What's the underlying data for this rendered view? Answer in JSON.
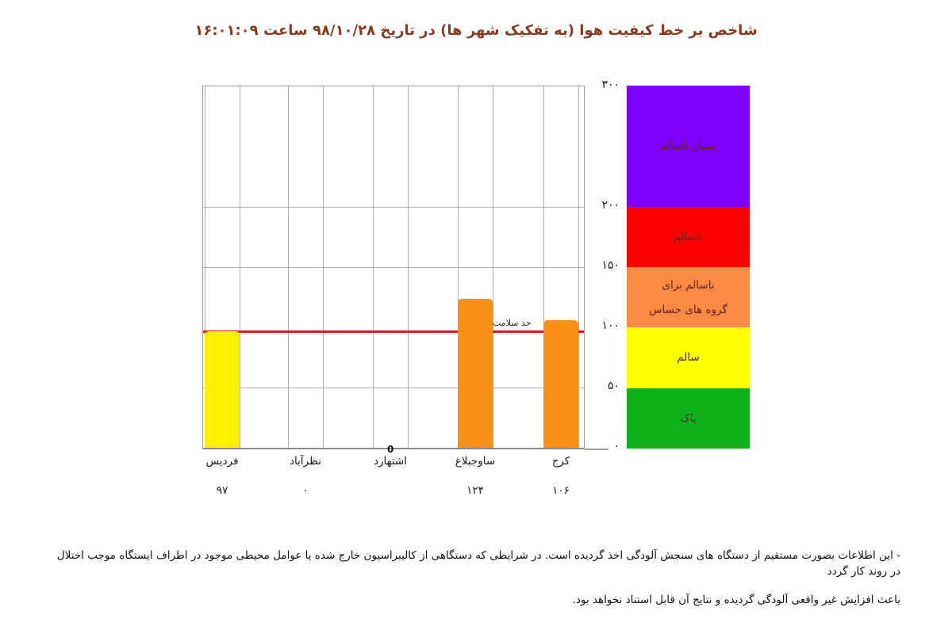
{
  "title": "شاخص بر خط کیفیت هوا (به تفکیک شهر ها) در تاریخ ۹۸/۱۰/۲۸   ساعت ۱۶:۰۱:۰۹",
  "footnote": {
    "line1": "- این اطلاعات بصورت مستقیم از دستگاه های سنجش آلودگی اخذ گردیده است. در شرایطی که دستگاهی از کالیبراسیون خارج شده یا عوامل محیطی موجود در اطراف ایستگاه موجب اختلال در روند کار گردد",
    "line2": "باعث افزایش غیر واقعی آلودگی گردیده و نتایج آن قابل استناد نخواهد بود."
  },
  "colors": {
    "title_text": "#8a3a1e",
    "grid_line": "#aeaeae",
    "plot_border": "#9a9a9a",
    "reference_line": "#ee1111",
    "bar_yellow": "#fff100",
    "bar_orange": "#fa9017",
    "legend_purple": "#7f00ff",
    "legend_red": "#ff0000",
    "legend_orange": "#fb8a43",
    "legend_yellow": "#ffff00",
    "legend_green": "#0db21a"
  },
  "chart_data": {
    "type": "bar",
    "title": "شاخص بر خط کیفیت هوا (به تفکیک شهر ها)",
    "date_label": "۹۸/۱۰/۲۸",
    "time_label": "۱۶:۰۱:۰۹",
    "categories": [
      "فردیس",
      "نظرآباد",
      "اشتهارد",
      "ساوجبلاغ",
      "کرج"
    ],
    "values": [
      97,
      0,
      0,
      124,
      106
    ],
    "value_labels": [
      "۹۷",
      "۰",
      "0",
      "۱۲۴",
      "۱۰۶"
    ],
    "value_label_styles": [
      "below",
      "below",
      "overlap",
      "below",
      "below"
    ],
    "bar_colors": [
      "#fff100",
      null,
      null,
      "#fa9017",
      "#fa9017"
    ],
    "ylim": [
      0,
      300
    ],
    "yticks": [
      {
        "value": 300,
        "label": "۳۰۰"
      },
      {
        "value": 200,
        "label": "۲۰۰"
      },
      {
        "value": 150,
        "label": "۱۵۰"
      },
      {
        "value": 100,
        "label": "۱۰۰"
      },
      {
        "value": 50,
        "label": "۵۰"
      },
      {
        "value": 0,
        "label": "۰"
      }
    ],
    "gridline_values": [
      200,
      150,
      50
    ],
    "grid": true,
    "legend_position": "right",
    "reference_line": {
      "label": "حد سلامت",
      "value": 97,
      "color": "#ee1111"
    },
    "legend_bands": [
      {
        "labels": [
          "بسیار ناسالم"
        ],
        "range": [
          200,
          300
        ],
        "color": "#7f00ff"
      },
      {
        "labels": [
          "ناسالم"
        ],
        "range": [
          150,
          200
        ],
        "color": "#ff0000"
      },
      {
        "labels": [
          "ناسالم برای",
          "گروه های حساس"
        ],
        "range": [
          100,
          150
        ],
        "color": "#fb8a43"
      },
      {
        "labels": [
          "سالم"
        ],
        "range": [
          50,
          100
        ],
        "color": "#ffff00"
      },
      {
        "labels": [
          "پاک"
        ],
        "range": [
          0,
          50
        ],
        "color": "#0db21a"
      }
    ]
  }
}
